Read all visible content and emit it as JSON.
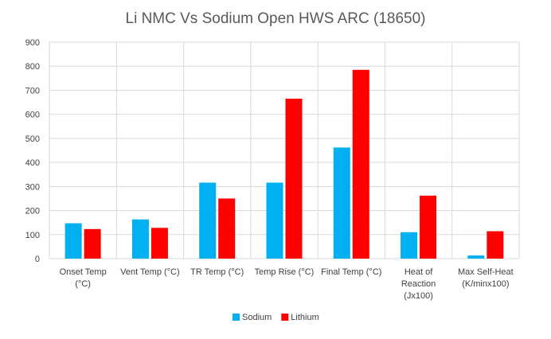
{
  "chart_data": {
    "type": "bar",
    "title": "Li NMC Vs Sodium Open HWS ARC (18650)",
    "xlabel": "",
    "ylabel": "",
    "ylim": [
      0,
      900
    ],
    "yticks": [
      0,
      100,
      200,
      300,
      400,
      500,
      600,
      700,
      800,
      900
    ],
    "grid": true,
    "legend_position": "bottom",
    "categories": [
      [
        "Onset Temp",
        "(°C)"
      ],
      [
        "Vent Temp (°C)"
      ],
      [
        "TR Temp (°C)"
      ],
      [
        "Temp Rise (°C)"
      ],
      [
        "Final Temp (°C)"
      ],
      [
        "Heat of",
        "Reaction",
        "(Jx100)"
      ],
      [
        "Max Self-Heat",
        "(K/minx100)"
      ]
    ],
    "series": [
      {
        "name": "Sodium",
        "color": "#00B0F0",
        "values": [
          147,
          163,
          316,
          316,
          462,
          110,
          13
        ]
      },
      {
        "name": "Lithium",
        "color": "#FF0000",
        "values": [
          123,
          128,
          250,
          665,
          785,
          262,
          114
        ]
      }
    ]
  }
}
